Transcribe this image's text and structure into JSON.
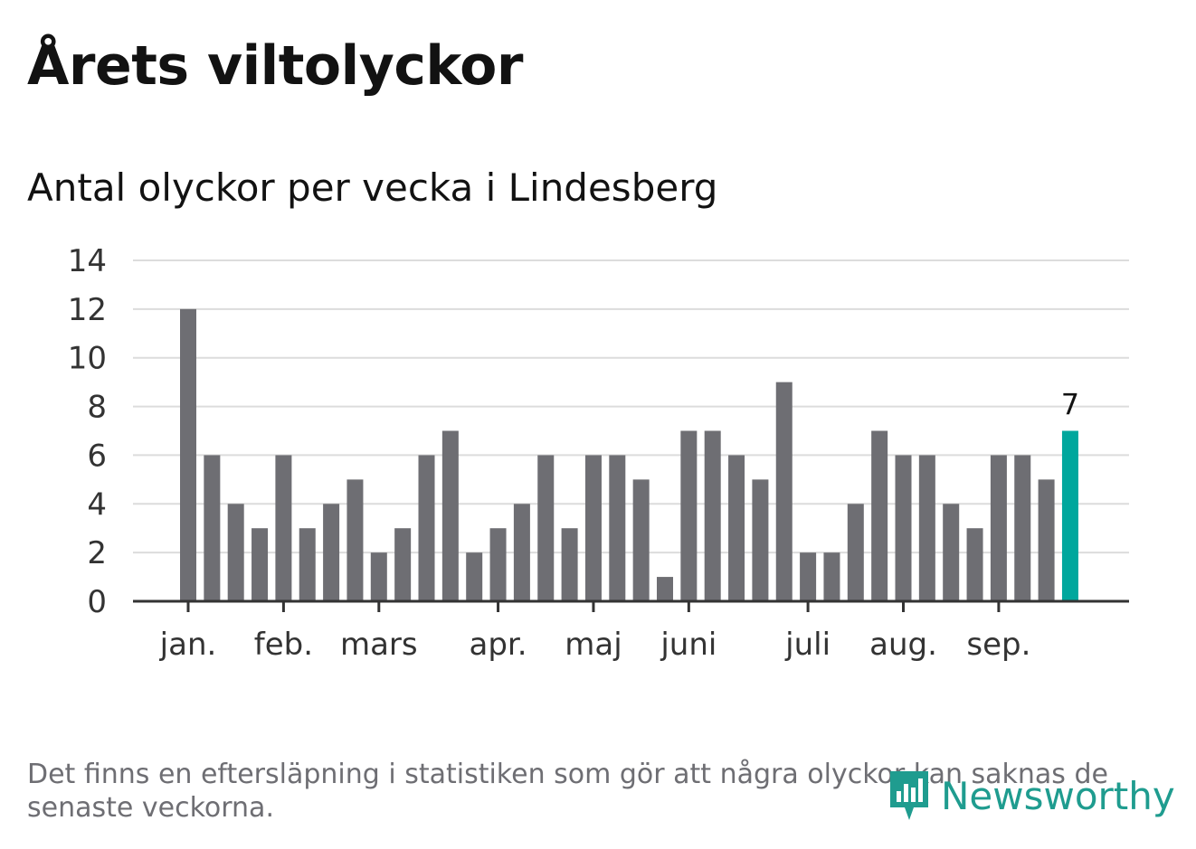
{
  "title": "Årets viltolyckor",
  "subtitle": "Antal olyckor per vecka i Lindesberg",
  "footnote": "Det finns en eftersläpning i statistiken som gör att några olyckor kan saknas de senaste veckorna.",
  "brand": "Newsworthy",
  "colors": {
    "bar": "#6e6e73",
    "highlight": "#00a79d",
    "grid": "#dcdcdc",
    "axis": "#333333",
    "brand": "#1f9c8f"
  },
  "chart_data": {
    "type": "bar",
    "title": "Antal olyckor per vecka i Lindesberg",
    "xlabel": "",
    "ylabel": "",
    "ylim": [
      0,
      14
    ],
    "yticks": [
      0,
      2,
      4,
      6,
      8,
      10,
      12,
      14
    ],
    "values": [
      12,
      6,
      4,
      3,
      6,
      3,
      4,
      5,
      2,
      3,
      6,
      7,
      2,
      3,
      4,
      6,
      3,
      6,
      6,
      5,
      1,
      7,
      7,
      6,
      5,
      9,
      2,
      2,
      4,
      7,
      6,
      6,
      4,
      3,
      6,
      6,
      5,
      7
    ],
    "highlight_index": 37,
    "highlight_label": "7",
    "month_labels": [
      {
        "label": "jan.",
        "week_index": 0
      },
      {
        "label": "feb.",
        "week_index": 4
      },
      {
        "label": "mars",
        "week_index": 8
      },
      {
        "label": "apr.",
        "week_index": 13
      },
      {
        "label": "maj",
        "week_index": 17
      },
      {
        "label": "juni",
        "week_index": 21
      },
      {
        "label": "juli",
        "week_index": 26
      },
      {
        "label": "aug.",
        "week_index": 30
      },
      {
        "label": "sep.",
        "week_index": 34
      }
    ],
    "grid": true
  }
}
